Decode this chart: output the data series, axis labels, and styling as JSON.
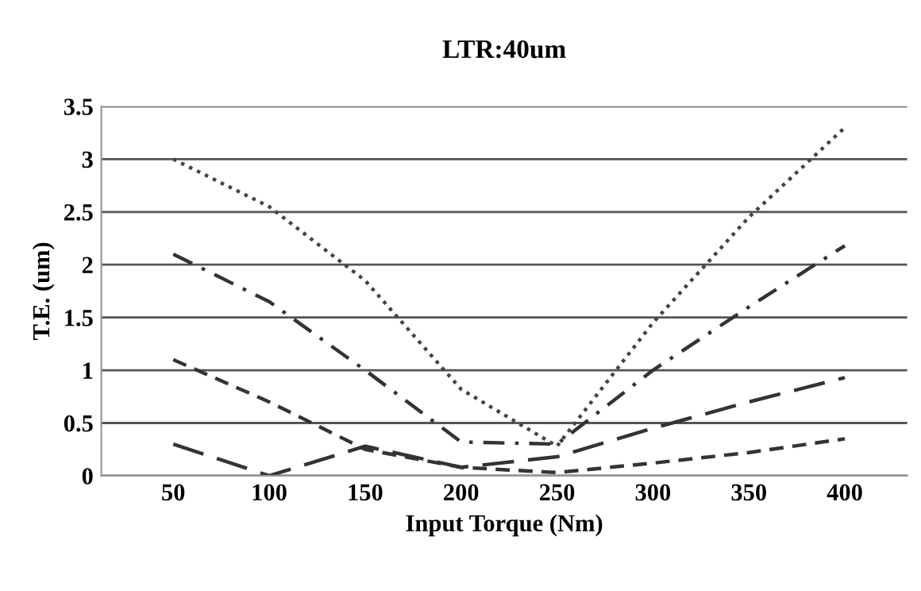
{
  "chart_data": {
    "type": "line",
    "title": "LTR:40um",
    "xlabel": "Input Torque (Nm)",
    "ylabel": "T.E. (um)",
    "categories": [
      "50",
      "100",
      "150",
      "200",
      "250",
      "300",
      "350",
      "400"
    ],
    "series": [
      {
        "color": "#444444",
        "line_style": "dotted",
        "values": [
          3.0,
          2.55,
          1.85,
          0.82,
          0.28,
          1.45,
          2.45,
          3.3
        ]
      },
      {
        "color": "#333333",
        "line_style": "dashdot",
        "values": [
          2.1,
          1.65,
          1.0,
          0.32,
          0.3,
          1.0,
          1.6,
          2.18
        ]
      },
      {
        "color": "#333333",
        "line_style": "dashed",
        "values": [
          1.1,
          0.7,
          0.25,
          0.08,
          0.03,
          0.12,
          0.22,
          0.35
        ]
      },
      {
        "color": "#333333",
        "line_style": "longdash",
        "values": [
          0.3,
          0.0,
          0.28,
          0.08,
          0.18,
          0.45,
          0.7,
          0.93
        ]
      }
    ],
    "ylim": [
      0,
      3.5
    ],
    "yticks": [
      0,
      0.5,
      1,
      1.5,
      2,
      2.5,
      3,
      3.5
    ],
    "grid": "y",
    "legend": false
  }
}
